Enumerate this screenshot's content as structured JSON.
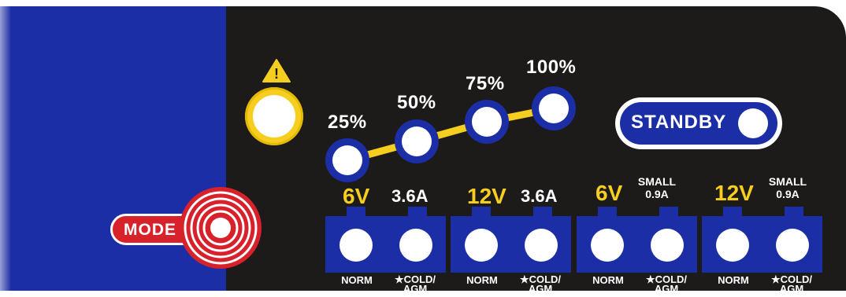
{
  "colors": {
    "panel": "#1d1b1a",
    "blue": "#1c2ea5",
    "yellow": "#f6ce1f",
    "red": "#d8222b",
    "white": "#ffffff"
  },
  "warning": {
    "icon": "warning-triangle-icon",
    "symbol": "!"
  },
  "charge_levels": [
    {
      "label": "25%"
    },
    {
      "label": "50%"
    },
    {
      "label": "75%"
    },
    {
      "label": "100%"
    }
  ],
  "standby": {
    "label": "STANDBY"
  },
  "mode": {
    "label": "MODE"
  },
  "channels": [
    {
      "voltage": "6V",
      "current": "3.6A",
      "left_label": "NORM",
      "right_label_top": "★COLD/",
      "right_label_bottom": "AGM"
    },
    {
      "voltage": "12V",
      "current": "3.6A",
      "left_label": "NORM",
      "right_label_top": "★COLD/",
      "right_label_bottom": "AGM"
    },
    {
      "voltage": "6V",
      "current_top": "SMALL",
      "current_bottom": "0.9A",
      "left_label": "NORM",
      "right_label_top": "★COLD/",
      "right_label_bottom": "AGM"
    },
    {
      "voltage": "12V",
      "current_top": "SMALL",
      "current_bottom": "0.9A",
      "left_label": "NORM",
      "right_label_top": "★COLD/",
      "right_label_bottom": "AGM"
    }
  ]
}
